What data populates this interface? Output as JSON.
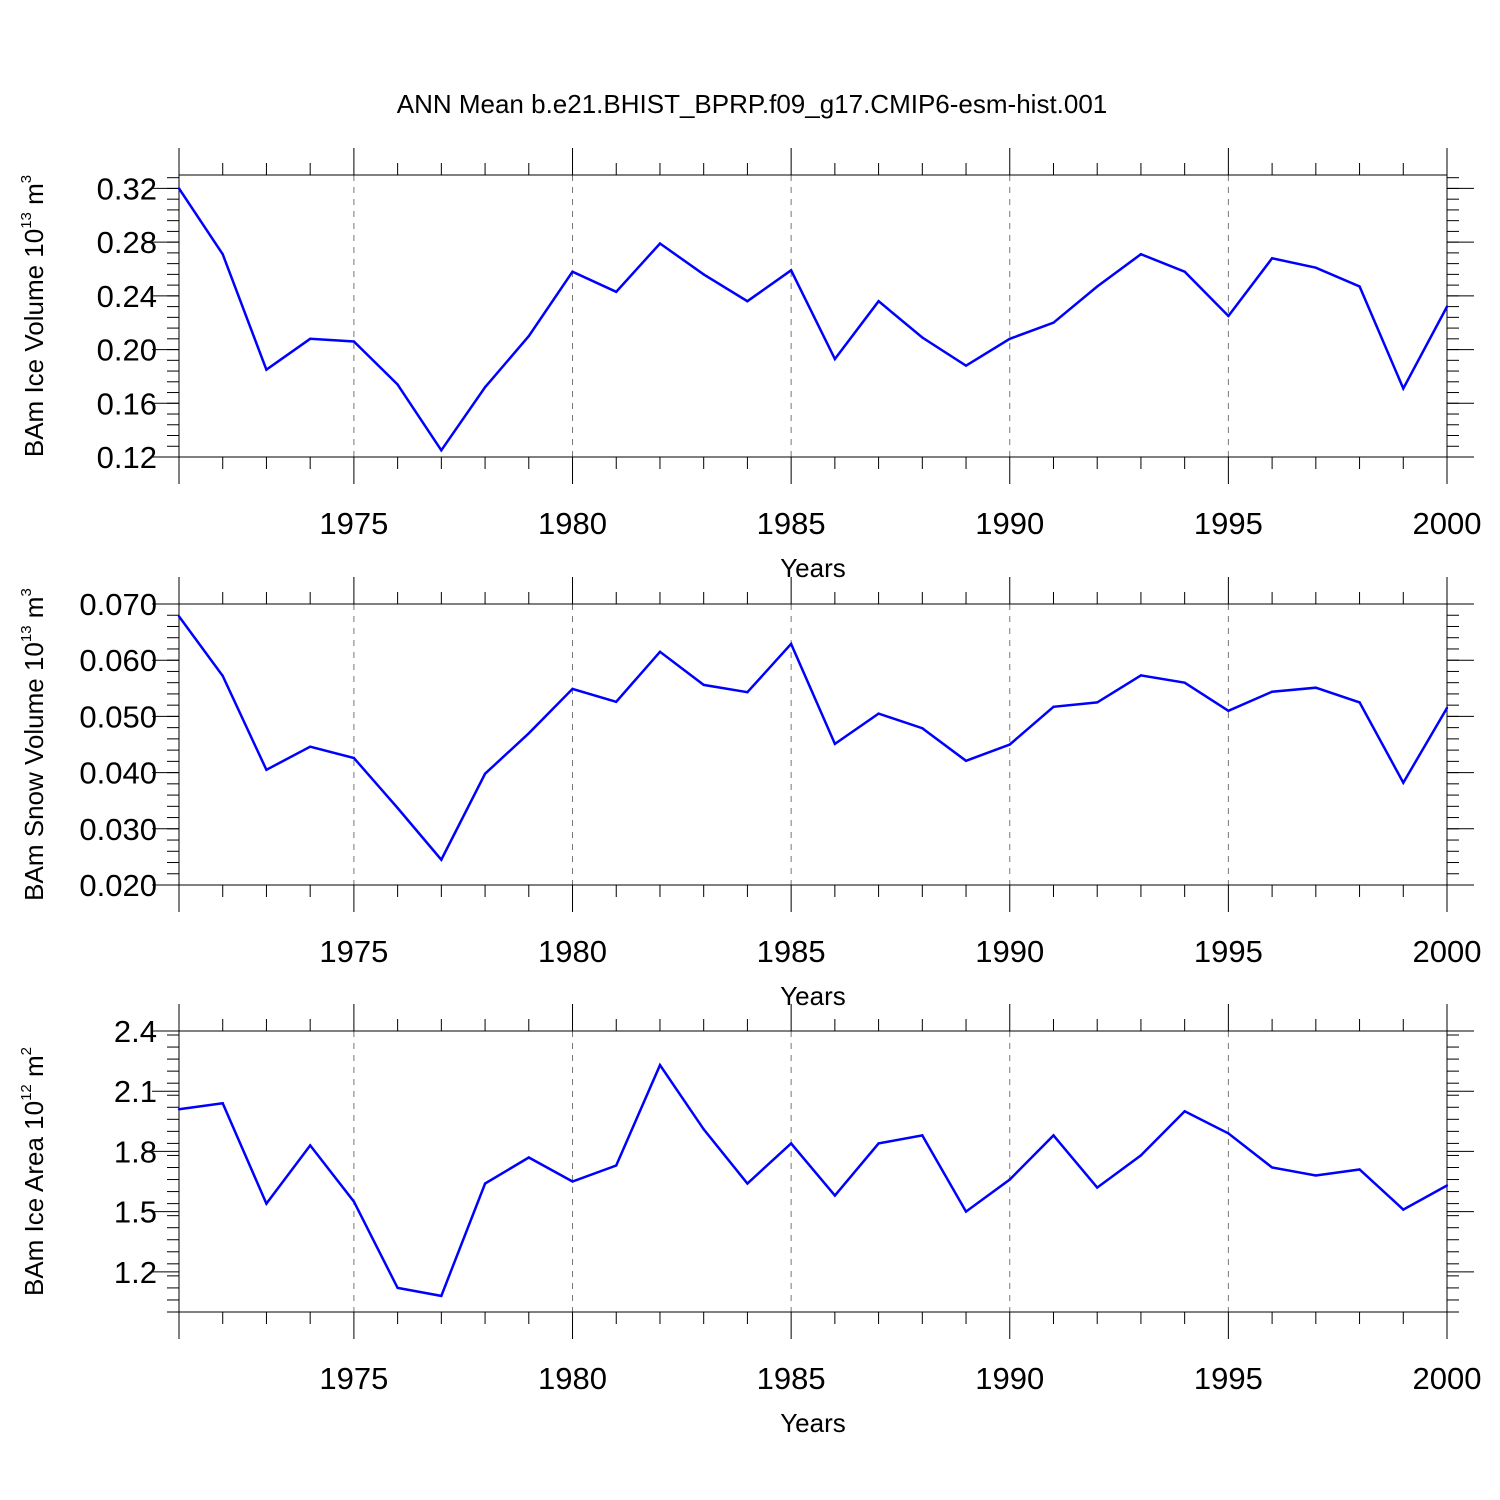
{
  "title": "ANN Mean b.e21.BHIST_BPRP.f09_g17.CMIP6-esm-hist.001",
  "colors": {
    "line": "#0000ff",
    "axis": "#000000",
    "grid": "#777777"
  },
  "chart_data": [
    {
      "type": "line",
      "xlabel": "Years",
      "ylabel": {
        "main": "BAm Ice Volume 10",
        "exp": "13",
        "unit": " m",
        "unit_exp": "3"
      },
      "xlim": [
        1971,
        2000
      ],
      "ylim": [
        0.12,
        0.33
      ],
      "x_ticks": [
        1975,
        1980,
        1985,
        1990,
        1995,
        2000
      ],
      "x_tick_labels": [
        "1975",
        "1980",
        "1985",
        "1990",
        "1995",
        "2000"
      ],
      "y_ticks": [
        0.12,
        0.16,
        0.2,
        0.24,
        0.28,
        0.32
      ],
      "y_tick_labels": [
        "0.12",
        "0.16",
        "0.20",
        "0.24",
        "0.28",
        "0.32"
      ],
      "y_minor_step": 0.008,
      "vgrid": [
        1975,
        1980,
        1985,
        1990,
        1995
      ],
      "series": [
        {
          "name": "BAm Ice Volume",
          "x": [
            1971,
            1972,
            1973,
            1974,
            1975,
            1976,
            1977,
            1978,
            1979,
            1980,
            1981,
            1982,
            1983,
            1984,
            1985,
            1986,
            1987,
            1988,
            1989,
            1990,
            1991,
            1992,
            1993,
            1994,
            1995,
            1996,
            1997,
            1998,
            1999,
            2000
          ],
          "values": [
            0.32,
            0.271,
            0.185,
            0.208,
            0.206,
            0.174,
            0.125,
            0.172,
            0.21,
            0.258,
            0.243,
            0.279,
            0.256,
            0.236,
            0.259,
            0.193,
            0.236,
            0.209,
            0.188,
            0.208,
            0.22,
            0.247,
            0.271,
            0.258,
            0.225,
            0.268,
            0.261,
            0.247,
            0.171,
            0.232
          ]
        }
      ]
    },
    {
      "type": "line",
      "xlabel": "Years",
      "ylabel": {
        "main": "BAm Snow Volume 10",
        "exp": "13",
        "unit": " m",
        "unit_exp": "3"
      },
      "xlim": [
        1971,
        2000
      ],
      "ylim": [
        0.02,
        0.07
      ],
      "x_ticks": [
        1975,
        1980,
        1985,
        1990,
        1995,
        2000
      ],
      "x_tick_labels": [
        "1975",
        "1980",
        "1985",
        "1990",
        "1995",
        "2000"
      ],
      "y_ticks": [
        0.02,
        0.03,
        0.04,
        0.05,
        0.06,
        0.07
      ],
      "y_tick_labels": [
        "0.020",
        "0.030",
        "0.040",
        "0.050",
        "0.060",
        "0.070"
      ],
      "y_minor_step": 0.002,
      "vgrid": [
        1975,
        1980,
        1985,
        1990,
        1995
      ],
      "series": [
        {
          "name": "BAm Snow Volume",
          "x": [
            1971,
            1972,
            1973,
            1974,
            1975,
            1976,
            1977,
            1978,
            1979,
            1980,
            1981,
            1982,
            1983,
            1984,
            1985,
            1986,
            1987,
            1988,
            1989,
            1990,
            1991,
            1992,
            1993,
            1994,
            1995,
            1996,
            1997,
            1998,
            1999,
            2000
          ],
          "values": [
            0.0678,
            0.0572,
            0.0405,
            0.0446,
            0.0426,
            0.0337,
            0.0245,
            0.0398,
            0.047,
            0.0549,
            0.0526,
            0.0615,
            0.0556,
            0.0543,
            0.0629,
            0.0451,
            0.0505,
            0.0479,
            0.0421,
            0.045,
            0.0517,
            0.0525,
            0.0573,
            0.056,
            0.051,
            0.0544,
            0.0551,
            0.0525,
            0.0382,
            0.0515
          ]
        }
      ]
    },
    {
      "type": "line",
      "xlabel": "Years",
      "ylabel": {
        "main": "BAm Ice Area 10",
        "exp": "12",
        "unit": " m",
        "unit_exp": "2"
      },
      "xlim": [
        1971,
        2000
      ],
      "ylim": [
        1.0,
        2.4
      ],
      "x_ticks": [
        1975,
        1980,
        1985,
        1990,
        1995,
        2000
      ],
      "x_tick_labels": [
        "1975",
        "1980",
        "1985",
        "1990",
        "1995",
        "2000"
      ],
      "y_ticks": [
        1.2,
        1.5,
        1.8,
        2.1,
        2.4
      ],
      "y_tick_labels": [
        "1.2",
        "1.5",
        "1.8",
        "2.1",
        "2.4"
      ],
      "y_minor_step": 0.06,
      "vgrid": [
        1975,
        1980,
        1985,
        1990,
        1995
      ],
      "series": [
        {
          "name": "BAm Ice Area",
          "x": [
            1971,
            1972,
            1973,
            1974,
            1975,
            1976,
            1977,
            1978,
            1979,
            1980,
            1981,
            1982,
            1983,
            1984,
            1985,
            1986,
            1987,
            1988,
            1989,
            1990,
            1991,
            1992,
            1993,
            1994,
            1995,
            1996,
            1997,
            1998,
            1999,
            2000
          ],
          "values": [
            2.01,
            2.04,
            1.54,
            1.83,
            1.55,
            1.12,
            1.08,
            1.64,
            1.77,
            1.65,
            1.73,
            2.23,
            1.91,
            1.64,
            1.84,
            1.58,
            1.84,
            1.88,
            1.5,
            1.66,
            1.88,
            1.62,
            1.78,
            2.0,
            1.89,
            1.72,
            1.68,
            1.71,
            1.51,
            1.63
          ]
        }
      ]
    }
  ]
}
